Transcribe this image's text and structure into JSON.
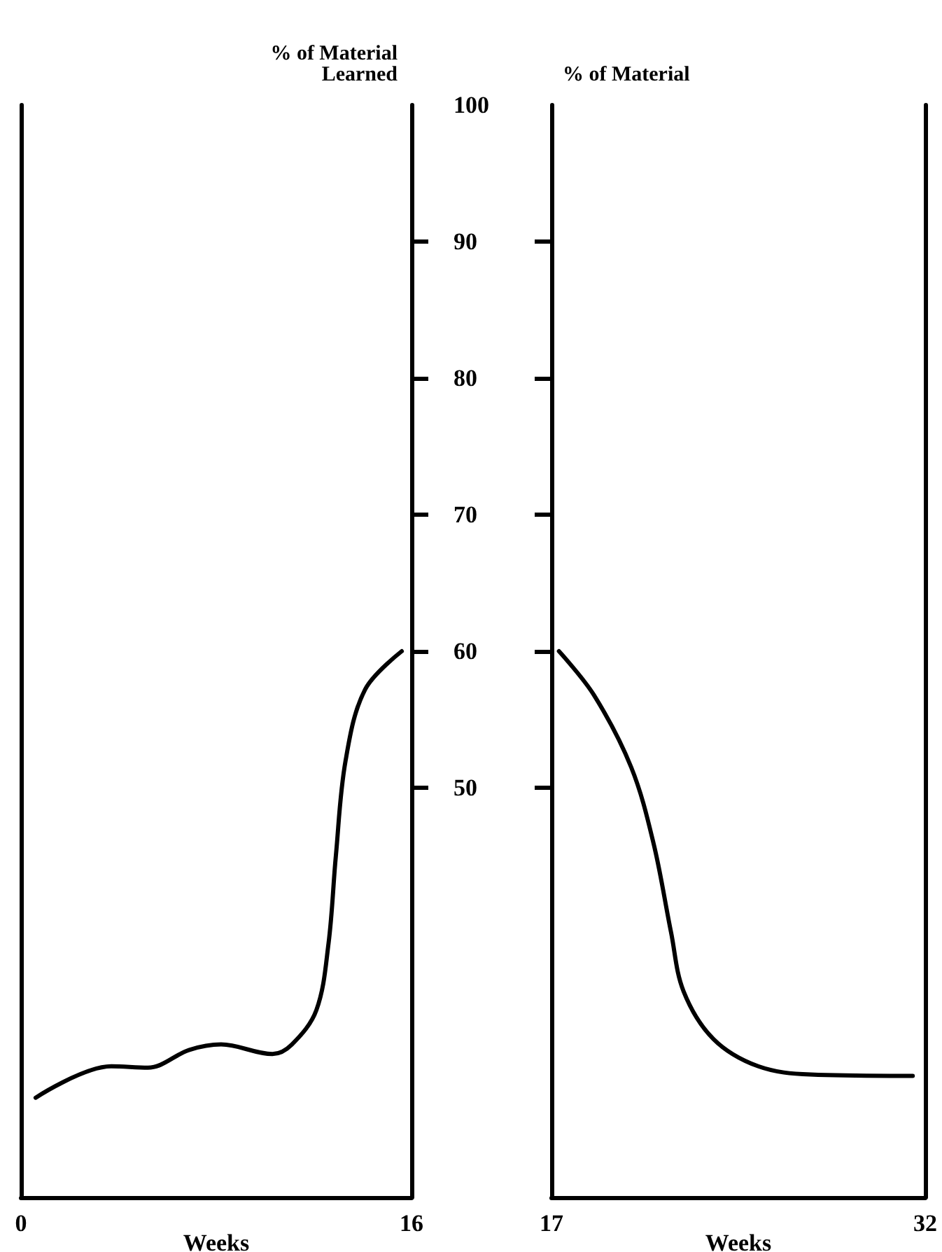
{
  "chart_data": [
    {
      "type": "line",
      "ylabel": "% of Material\nLearned",
      "xlabel": "Weeks",
      "xlim": [
        0,
        16
      ],
      "xticks": [
        0,
        16
      ],
      "ylim": [
        20,
        100
      ],
      "yticks": [
        50,
        60,
        70,
        80,
        90,
        100
      ],
      "grid": false,
      "marker": "none",
      "line_style": "solid",
      "series": [
        {
          "color": "#000000",
          "x": [
            0.6,
            3.7,
            5.2,
            6.9,
            8.2,
            10.3,
            11.1,
            12.1,
            12.6,
            12.9,
            13.3,
            14.1,
            15.6
          ],
          "values": [
            27.3,
            29.6,
            29.5,
            30.8,
            31.2,
            30.5,
            31.2,
            33.7,
            38.6,
            45,
            52,
            57.2,
            60
          ]
        }
      ]
    },
    {
      "type": "line",
      "ylabel": "% of Material",
      "xlabel": "Weeks",
      "xlim": [
        17,
        32
      ],
      "xticks": [
        17,
        32
      ],
      "ylim": [
        20,
        100
      ],
      "yticks": [
        50,
        60,
        70,
        80,
        90,
        100
      ],
      "tick_labels": "x",
      "grid": false,
      "marker": "none",
      "line_style": "solid",
      "series": [
        {
          "color": "#000000",
          "x": [
            17.3,
            18.7,
            20.2,
            21.1,
            21.8,
            22.3,
            23.5,
            25.3,
            27.4,
            31.5
          ],
          "values": [
            60,
            56.8,
            51.5,
            45.9,
            39.4,
            35.1,
            31.6,
            29.6,
            29,
            28.9
          ]
        }
      ]
    }
  ]
}
